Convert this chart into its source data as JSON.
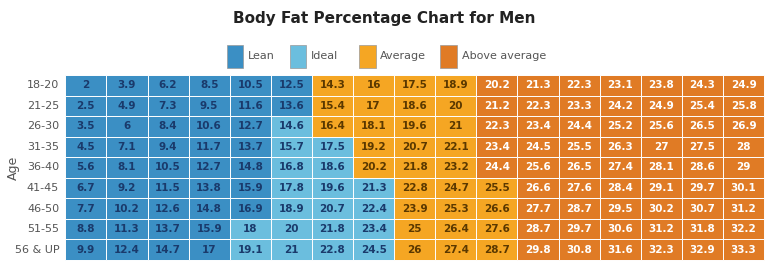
{
  "title": "Body Fat Percentage Chart for Men",
  "ylabel": "Age",
  "age_groups": [
    "18-20",
    "21-25",
    "26-30",
    "31-35",
    "36-40",
    "41-45",
    "46-50",
    "51-55",
    "56 & UP"
  ],
  "data": [
    [
      2,
      3.9,
      6.2,
      8.5,
      10.5,
      12.5,
      14.3,
      16,
      17.5,
      18.9,
      20.2,
      21.3,
      22.3,
      23.1,
      23.8,
      24.3,
      24.9
    ],
    [
      2.5,
      4.9,
      7.3,
      9.5,
      11.6,
      13.6,
      15.4,
      17,
      18.6,
      20,
      21.2,
      22.3,
      23.3,
      24.2,
      24.9,
      25.4,
      25.8
    ],
    [
      3.5,
      6,
      8.4,
      10.6,
      12.7,
      14.6,
      16.4,
      18.1,
      19.6,
      21,
      22.3,
      23.4,
      24.4,
      25.2,
      25.6,
      26.5,
      26.9
    ],
    [
      4.5,
      7.1,
      9.4,
      11.7,
      13.7,
      15.7,
      17.5,
      19.2,
      20.7,
      22.1,
      23.4,
      24.5,
      25.5,
      26.3,
      27,
      27.5,
      28
    ],
    [
      5.6,
      8.1,
      10.5,
      12.7,
      14.8,
      16.8,
      18.6,
      20.2,
      21.8,
      23.2,
      24.4,
      25.6,
      26.5,
      27.4,
      28.1,
      28.6,
      29
    ],
    [
      6.7,
      9.2,
      11.5,
      13.8,
      15.9,
      17.8,
      19.6,
      21.3,
      22.8,
      24.7,
      25.5,
      26.6,
      27.6,
      28.4,
      29.1,
      29.7,
      30.1
    ],
    [
      7.7,
      10.2,
      12.6,
      14.8,
      16.9,
      18.9,
      20.7,
      22.4,
      23.9,
      25.3,
      26.6,
      27.7,
      28.7,
      29.5,
      30.2,
      30.7,
      31.2
    ],
    [
      8.8,
      11.3,
      13.7,
      15.9,
      18,
      20,
      21.8,
      23.4,
      25,
      26.4,
      27.6,
      28.7,
      29.7,
      30.6,
      31.2,
      31.8,
      32.2
    ],
    [
      9.9,
      12.4,
      14.7,
      17,
      19.1,
      21,
      22.8,
      24.5,
      26,
      27.4,
      28.7,
      29.8,
      30.8,
      31.6,
      32.3,
      32.9,
      33.3
    ]
  ],
  "cell_categories": [
    [
      "Lean",
      "Lean",
      "Lean",
      "Lean",
      "Lean",
      "Lean",
      "Average",
      "Average",
      "Average",
      "Average",
      "Above average",
      "Above average",
      "Above average",
      "Above average",
      "Above average",
      "Above average",
      "Above average"
    ],
    [
      "Lean",
      "Lean",
      "Lean",
      "Lean",
      "Lean",
      "Lean",
      "Average",
      "Average",
      "Average",
      "Average",
      "Above average",
      "Above average",
      "Above average",
      "Above average",
      "Above average",
      "Above average",
      "Above average"
    ],
    [
      "Lean",
      "Lean",
      "Lean",
      "Lean",
      "Lean",
      "Ideal",
      "Average",
      "Average",
      "Average",
      "Average",
      "Above average",
      "Above average",
      "Above average",
      "Above average",
      "Above average",
      "Above average",
      "Above average"
    ],
    [
      "Lean",
      "Lean",
      "Lean",
      "Lean",
      "Lean",
      "Ideal",
      "Ideal",
      "Average",
      "Average",
      "Average",
      "Above average",
      "Above average",
      "Above average",
      "Above average",
      "Above average",
      "Above average",
      "Above average"
    ],
    [
      "Lean",
      "Lean",
      "Lean",
      "Lean",
      "Lean",
      "Ideal",
      "Ideal",
      "Average",
      "Average",
      "Average",
      "Above average",
      "Above average",
      "Above average",
      "Above average",
      "Above average",
      "Above average",
      "Above average"
    ],
    [
      "Lean",
      "Lean",
      "Lean",
      "Lean",
      "Lean",
      "Ideal",
      "Ideal",
      "Ideal",
      "Average",
      "Average",
      "Average",
      "Above average",
      "Above average",
      "Above average",
      "Above average",
      "Above average",
      "Above average"
    ],
    [
      "Lean",
      "Lean",
      "Lean",
      "Lean",
      "Lean",
      "Ideal",
      "Ideal",
      "Ideal",
      "Average",
      "Average",
      "Average",
      "Above average",
      "Above average",
      "Above average",
      "Above average",
      "Above average",
      "Above average"
    ],
    [
      "Lean",
      "Lean",
      "Lean",
      "Lean",
      "Ideal",
      "Ideal",
      "Ideal",
      "Ideal",
      "Average",
      "Average",
      "Average",
      "Above average",
      "Above average",
      "Above average",
      "Above average",
      "Above average",
      "Above average"
    ],
    [
      "Lean",
      "Lean",
      "Lean",
      "Lean",
      "Ideal",
      "Ideal",
      "Ideal",
      "Ideal",
      "Average",
      "Average",
      "Average",
      "Above average",
      "Above average",
      "Above average",
      "Above average",
      "Above average",
      "Above average"
    ]
  ],
  "category_colors": {
    "Lean": "#3B8FC4",
    "Ideal": "#6BBEDE",
    "Average": "#F5A623",
    "Above average": "#E07B25"
  },
  "text_colors": {
    "Lean": "#1A3A6B",
    "Ideal": "#1A3A6B",
    "Average": "#5A3800",
    "Above average": "#FFFFFF"
  },
  "background_color": "#FFFFFF",
  "title_color": "#222222",
  "label_color": "#555555",
  "title_fontsize": 11,
  "cell_fontsize": 7.5,
  "legend_fontsize": 8,
  "row_label_fontsize": 8,
  "ylabel_fontsize": 9,
  "legend_items": [
    "Lean",
    "Ideal",
    "Average",
    "Above average"
  ]
}
